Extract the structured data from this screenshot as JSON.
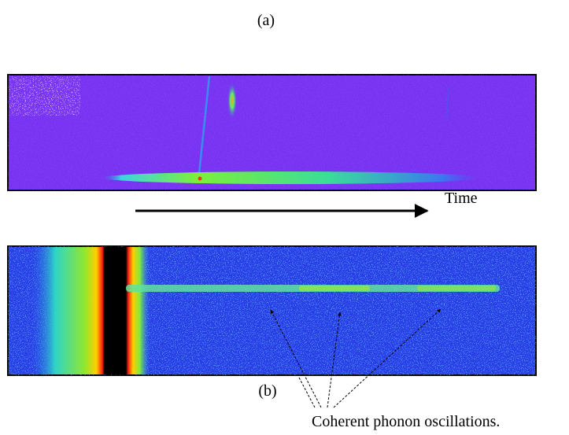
{
  "panel_a": {
    "label": "(a)",
    "axis_label": "Time"
  },
  "panel_b": {
    "label": "(b)",
    "annotation": "Coherent phonon oscillations."
  }
}
